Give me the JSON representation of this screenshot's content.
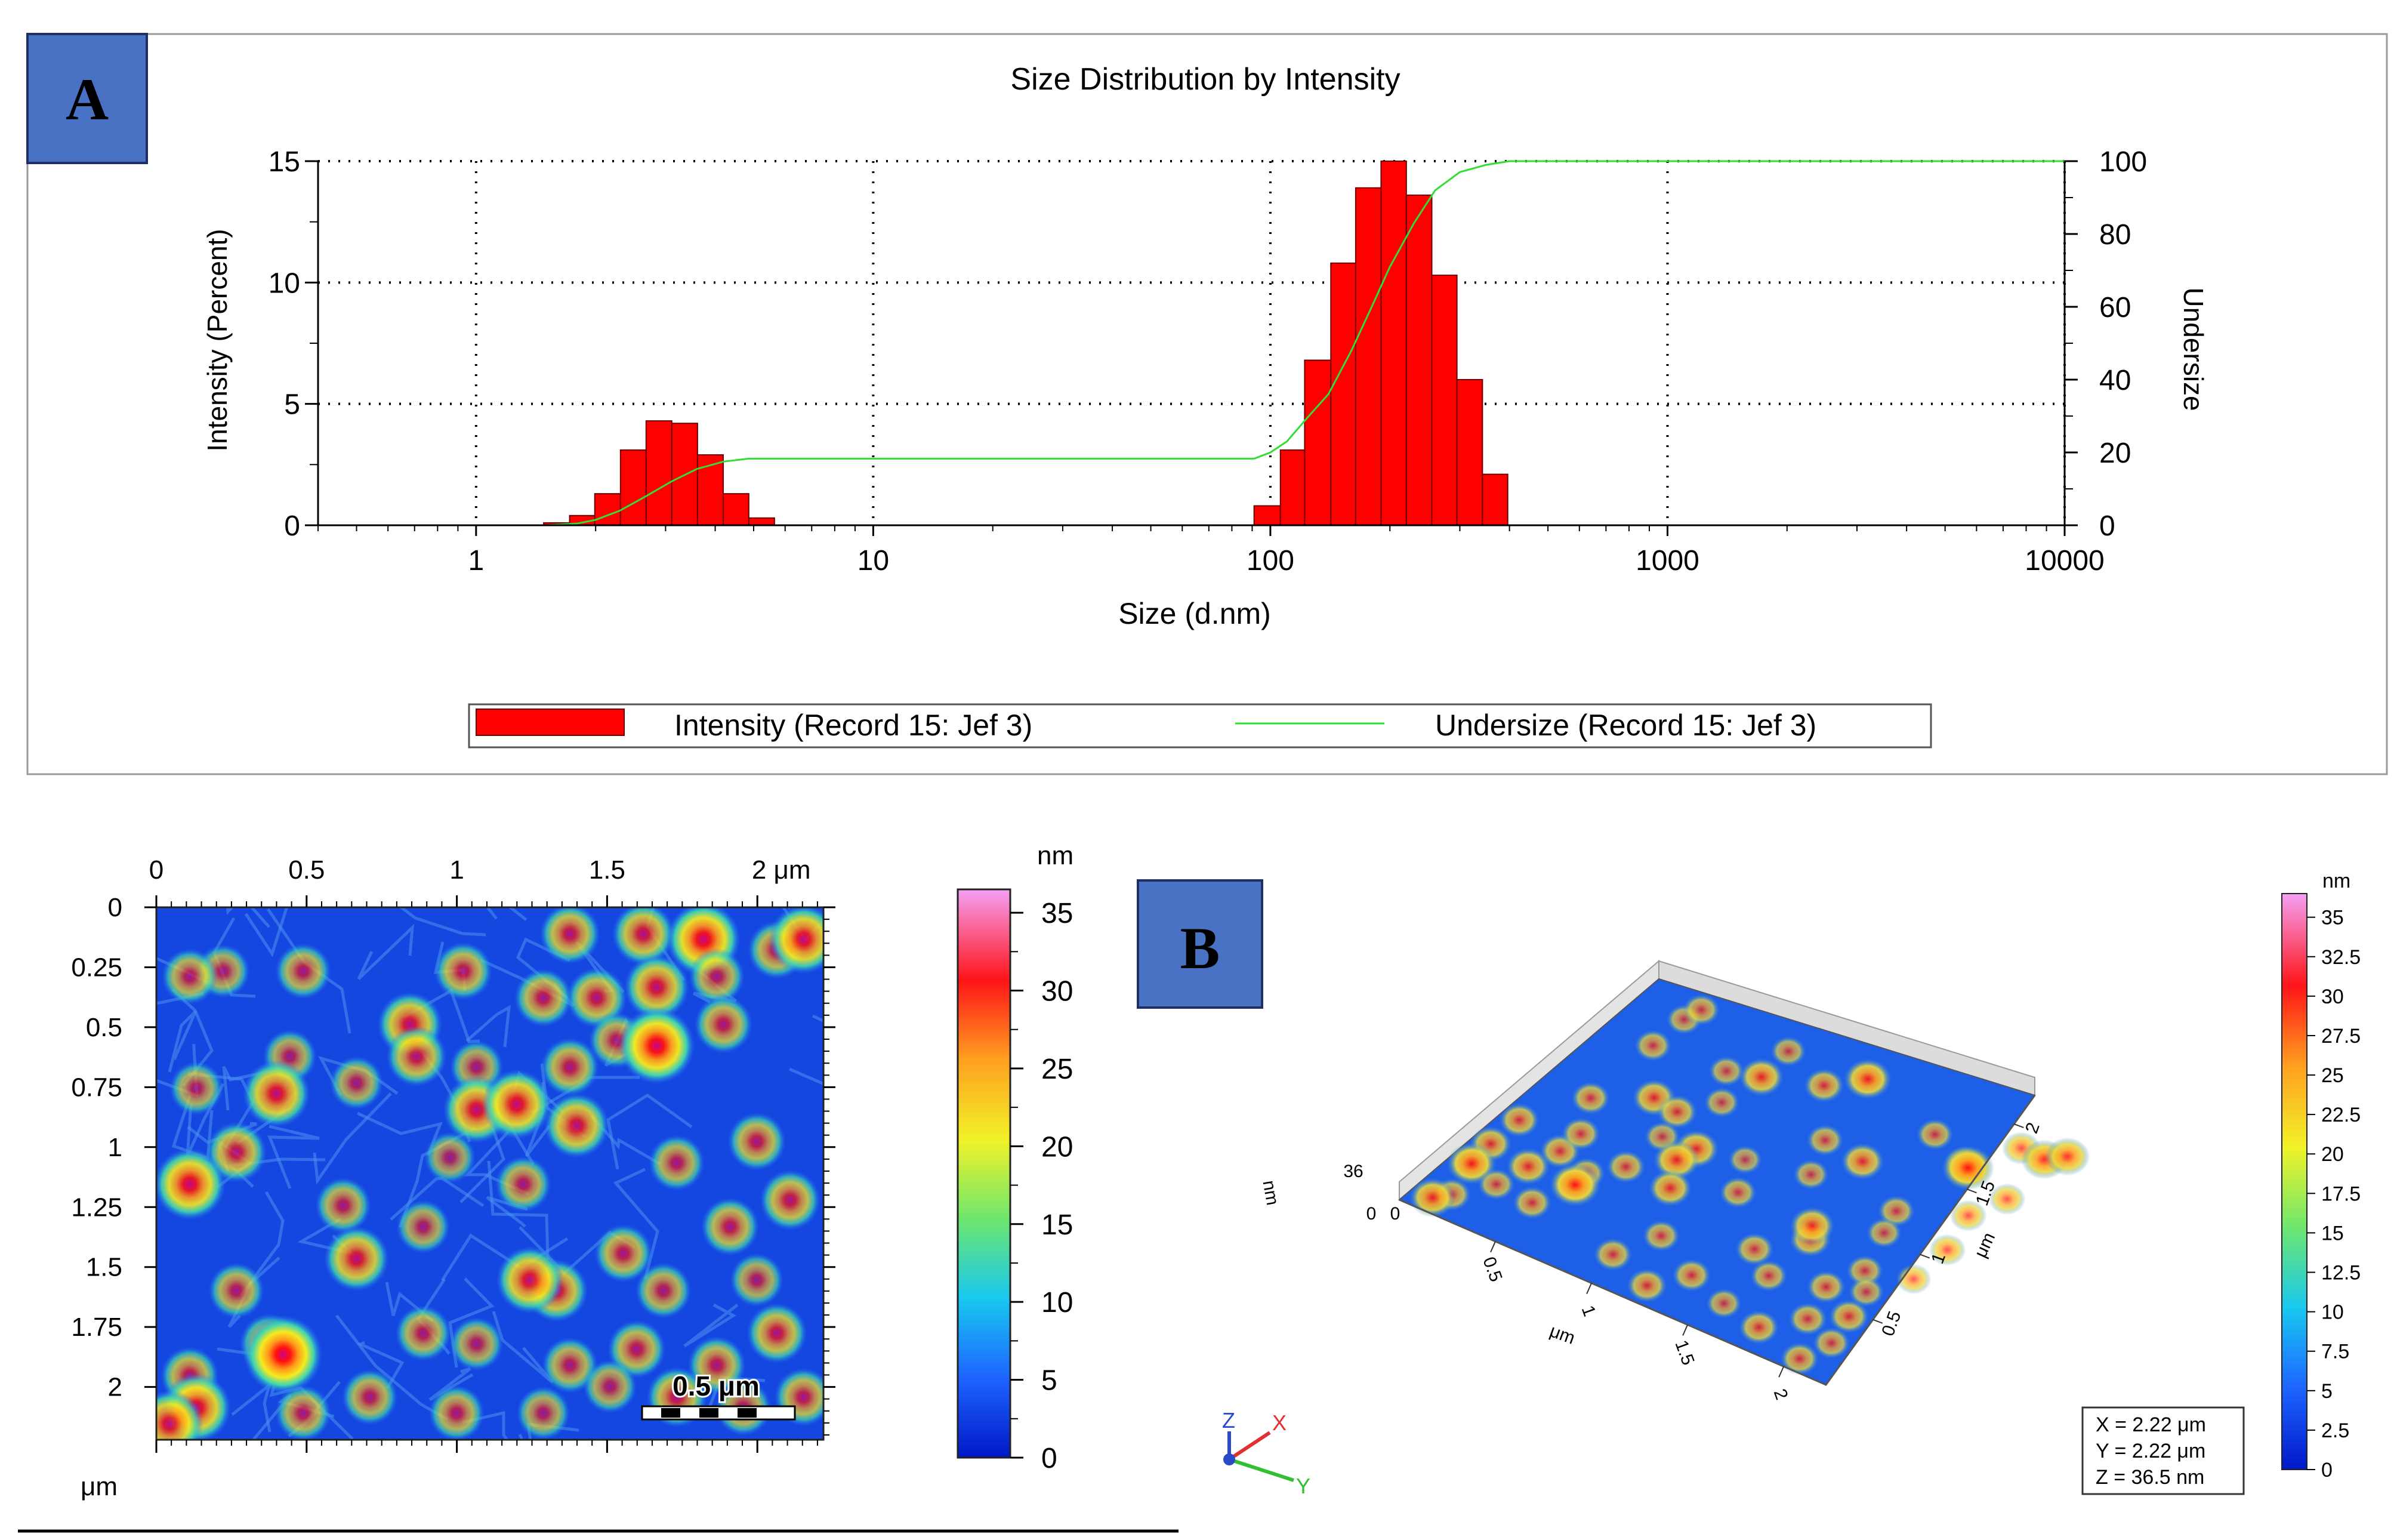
{
  "colors": {
    "bar": "#ff0000",
    "bar_edge": "#6a0000",
    "undersize_line": "#33dd33",
    "label_box": "#4a72c4",
    "afm_background": "#1446e0"
  },
  "panel_a": {
    "label": "A",
    "chart_data": {
      "type": "bar",
      "title": "Size Distribution by Intensity",
      "xlabel": "Size (d.nm)",
      "ylabel": "Intensity (Percent)",
      "ylabel_right": "Undersize",
      "xscale": "log",
      "xlim": [
        0.4,
        10000
      ],
      "ylim": [
        0,
        15
      ],
      "ylim_right": [
        0,
        100
      ],
      "xticks": [
        "1",
        "10",
        "100",
        "1000",
        "10000"
      ],
      "yticks": [
        "0",
        "5",
        "10",
        "15"
      ],
      "yticks_right": [
        "0",
        "20",
        "40",
        "60",
        "80",
        "100"
      ],
      "grid": true,
      "legend_position": "bottom",
      "series": [
        {
          "name": "Intensity (Record 15: Jef 3)",
          "kind": "bar",
          "bins": [
            [
              1.48,
              1.72,
              0.1
            ],
            [
              1.72,
              1.99,
              0.4
            ],
            [
              1.99,
              2.31,
              1.3
            ],
            [
              2.31,
              2.68,
              3.1
            ],
            [
              2.68,
              3.11,
              4.3
            ],
            [
              3.11,
              3.61,
              4.2
            ],
            [
              3.61,
              4.19,
              2.9
            ],
            [
              4.19,
              4.86,
              1.3
            ],
            [
              4.86,
              5.64,
              0.3
            ],
            [
              91,
              106,
              0.8
            ],
            [
              106,
              122,
              3.1
            ],
            [
              122,
              142,
              6.8
            ],
            [
              142,
              164,
              10.8
            ],
            [
              164,
              190,
              13.9
            ],
            [
              190,
              220,
              15.0
            ],
            [
              220,
              255,
              13.6
            ],
            [
              255,
              295,
              10.3
            ],
            [
              295,
              342,
              6.0
            ],
            [
              342,
              396,
              2.1
            ]
          ]
        },
        {
          "name": "Undersize (Record 15: Jef 3)",
          "kind": "line",
          "x": [
            0.4,
            1.5,
            1.8,
            2.0,
            2.3,
            2.68,
            3.1,
            3.6,
            4.2,
            4.86,
            5.3,
            10,
            30,
            91,
            100,
            110,
            125,
            140,
            160,
            180,
            200,
            230,
            260,
            300,
            350,
            400,
            10000
          ],
          "y": [
            0,
            0,
            0.5,
            1.5,
            4,
            8,
            12,
            15.5,
            17.5,
            18.3,
            18.3,
            18.3,
            18.3,
            18.3,
            20,
            23,
            30,
            36,
            48,
            60,
            71,
            83,
            92,
            97,
            99,
            100,
            100
          ]
        }
      ]
    }
  },
  "panel_b": {
    "label": "B",
    "map2d": {
      "x_ticks": [
        "0",
        "0.5",
        "1",
        "1.5",
        "2 μm"
      ],
      "y_ticks": [
        "0",
        "0.25",
        "0.5",
        "0.75",
        "1",
        "1.25",
        "1.5",
        "1.75",
        "2"
      ],
      "axis_unit": "μm",
      "scale_bar": "0.5 μm",
      "colorbar_unit": "nm",
      "colorbar_ticks": [
        "35",
        "30",
        "25",
        "20",
        "15",
        "10",
        "5",
        "0"
      ]
    },
    "view3d": {
      "z_unit": "nm",
      "z_ticks": [
        "36",
        "0"
      ],
      "x_ticks": [
        "0.5",
        "1",
        "1.5",
        "2"
      ],
      "x_unit": "μm",
      "y_ticks": [
        "0.5",
        "1",
        "1.5",
        "2"
      ],
      "y_unit": "μm",
      "origin": "0",
      "colorbar_unit": "nm",
      "colorbar_ticks": [
        "35",
        "32.5",
        "30",
        "27.5",
        "25",
        "22.5",
        "20",
        "17.5",
        "15",
        "12.5",
        "10",
        "7.5",
        "5",
        "2.5",
        "0"
      ],
      "dims": [
        "X = 2.22 μm",
        "Y = 2.22 μm",
        "Z = 36.5 nm"
      ],
      "axis_letters": [
        "Z",
        "X",
        "Y"
      ]
    },
    "grains": [
      [
        0.62,
        0.05,
        0.6
      ],
      [
        0.73,
        0.05,
        0.65
      ],
      [
        0.82,
        0.06,
        0.9
      ],
      [
        0.93,
        0.08,
        0.55
      ],
      [
        0.97,
        0.06,
        0.8
      ],
      [
        0.1,
        0.12,
        0.45
      ],
      [
        0.22,
        0.12,
        0.5
      ],
      [
        0.46,
        0.12,
        0.55
      ],
      [
        0.66,
        0.17,
        0.6
      ],
      [
        0.84,
        0.13,
        0.5
      ],
      [
        0.05,
        0.13,
        0.5
      ],
      [
        0.75,
        0.15,
        0.7
      ],
      [
        0.2,
        0.28,
        0.45
      ],
      [
        0.38,
        0.22,
        0.7
      ],
      [
        0.39,
        0.28,
        0.6
      ],
      [
        0.48,
        0.3,
        0.45
      ],
      [
        0.58,
        0.17,
        0.55
      ],
      [
        0.69,
        0.25,
        0.5
      ],
      [
        0.75,
        0.26,
        0.95
      ],
      [
        0.85,
        0.22,
        0.55
      ],
      [
        0.62,
        0.3,
        0.55
      ],
      [
        0.18,
        0.35,
        0.75
      ],
      [
        0.3,
        0.33,
        0.45
      ],
      [
        0.06,
        0.34,
        0.45
      ],
      [
        0.48,
        0.38,
        0.75
      ],
      [
        0.54,
        0.37,
        0.8
      ],
      [
        0.63,
        0.41,
        0.7
      ],
      [
        0.12,
        0.46,
        0.6
      ],
      [
        0.9,
        0.44,
        0.55
      ],
      [
        0.78,
        0.48,
        0.5
      ],
      [
        0.05,
        0.52,
        0.85
      ],
      [
        0.28,
        0.56,
        0.5
      ],
      [
        0.4,
        0.6,
        0.45
      ],
      [
        0.55,
        0.52,
        0.5
      ],
      [
        0.44,
        0.47,
        0.4
      ],
      [
        0.3,
        0.66,
        0.7
      ],
      [
        0.6,
        0.72,
        0.65
      ],
      [
        0.7,
        0.65,
        0.55
      ],
      [
        0.86,
        0.6,
        0.55
      ],
      [
        0.95,
        0.55,
        0.6
      ],
      [
        0.56,
        0.7,
        0.75
      ],
      [
        0.76,
        0.72,
        0.5
      ],
      [
        0.12,
        0.72,
        0.5
      ],
      [
        0.9,
        0.7,
        0.45
      ],
      [
        0.17,
        0.82,
        0.6
      ],
      [
        0.05,
        0.88,
        0.55
      ],
      [
        0.19,
        0.84,
        1.0
      ],
      [
        0.4,
        0.8,
        0.5
      ],
      [
        0.48,
        0.82,
        0.45
      ],
      [
        0.72,
        0.83,
        0.55
      ],
      [
        0.93,
        0.8,
        0.6
      ],
      [
        0.62,
        0.86,
        0.5
      ],
      [
        0.84,
        0.86,
        0.55
      ],
      [
        0.32,
        0.92,
        0.5
      ],
      [
        0.06,
        0.94,
        0.8
      ],
      [
        0.22,
        0.95,
        0.5
      ],
      [
        0.45,
        0.95,
        0.5
      ],
      [
        0.78,
        0.92,
        0.6
      ],
      [
        0.97,
        0.92,
        0.55
      ],
      [
        0.02,
        0.97,
        0.75
      ],
      [
        0.58,
        0.95,
        0.45
      ],
      [
        0.88,
        0.94,
        0.5
      ],
      [
        0.68,
        0.9,
        0.45
      ]
    ]
  }
}
